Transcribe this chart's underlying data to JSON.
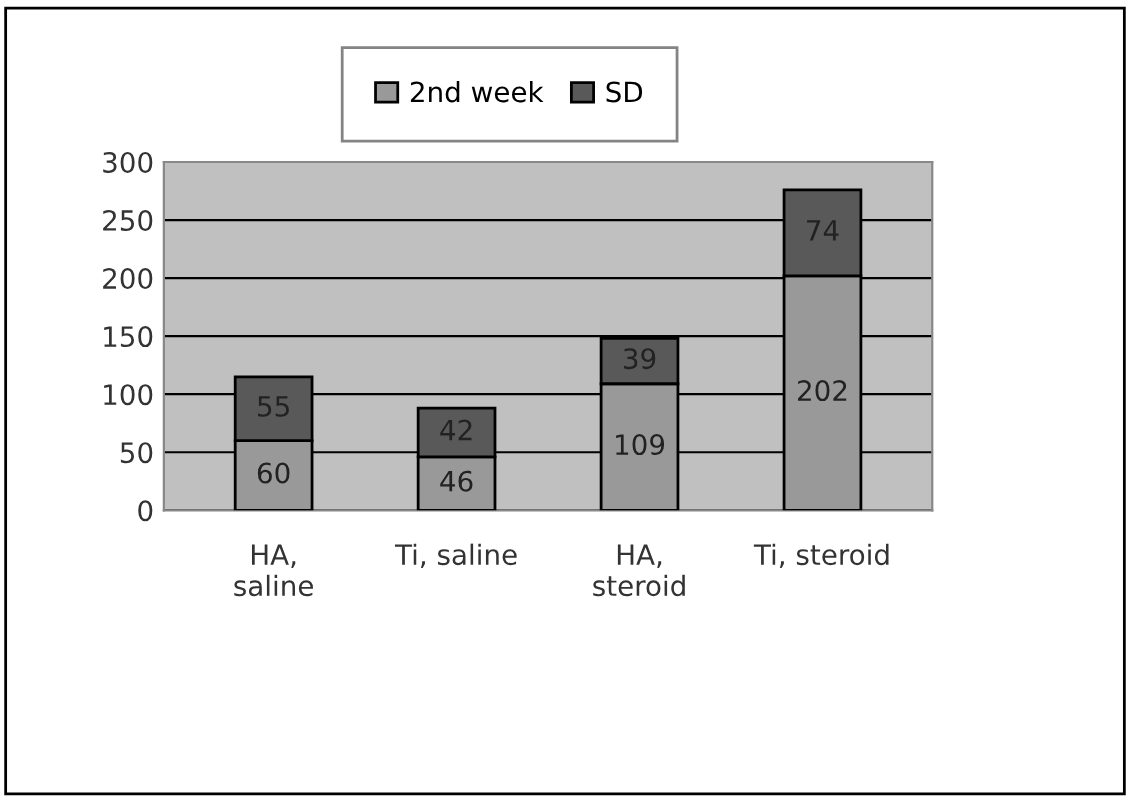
{
  "chart_data": {
    "type": "bar",
    "stacked": true,
    "categories": [
      "HA,\nsaline",
      "Ti, saline",
      "HA,\nsteroid",
      "Ti, steroid"
    ],
    "series": [
      {
        "name": "2nd week",
        "color": "#999999",
        "values": [
          60,
          46,
          109,
          202
        ]
      },
      {
        "name": "SD",
        "color": "#595959",
        "values": [
          55,
          42,
          39,
          74
        ]
      }
    ],
    "ylim": [
      0,
      300
    ],
    "yticks": [
      0,
      50,
      100,
      150,
      200,
      250,
      300
    ],
    "grid": "y",
    "legend": "top",
    "data_labels": true
  }
}
